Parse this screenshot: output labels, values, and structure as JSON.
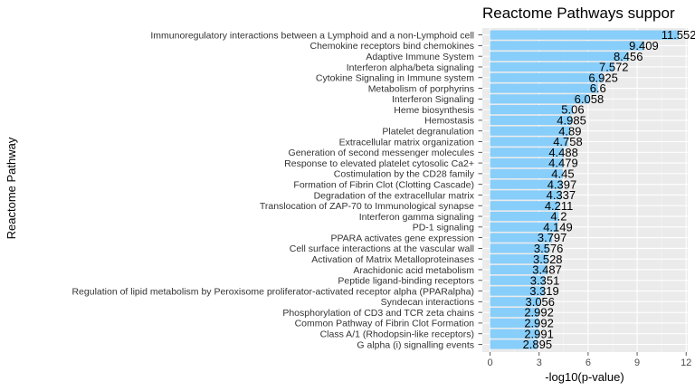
{
  "chart_data": {
    "type": "bar",
    "orientation": "horizontal",
    "title": "Reactome Pathways suppor",
    "xlabel": "-log10(p-value)",
    "ylabel": "Reactome Pathway",
    "xlim": [
      0,
      12
    ],
    "xticks": [
      0,
      3,
      6,
      9,
      12
    ],
    "grid": true,
    "bar_color": "#87CEFA",
    "panel_color": "#EBEBEB",
    "categories": [
      "Immunoregulatory interactions between a Lymphoid and a non-Lymphoid cell",
      "Chemokine receptors bind chemokines",
      "Adaptive Immune System",
      "Interferon alpha/beta signaling",
      "Cytokine Signaling in Immune system",
      "Metabolism of porphyrins",
      "Interferon Signaling",
      "Heme biosynthesis",
      "Hemostasis",
      "Platelet degranulation",
      "Extracellular matrix organization",
      "Generation of second messenger molecules",
      "Response to elevated platelet cytosolic Ca2+",
      "Costimulation by the CD28 family",
      "Formation of Fibrin Clot (Clotting Cascade)",
      "Degradation of the extracellular matrix",
      "Translocation of ZAP-70 to Immunological synapse",
      "Interferon gamma signaling",
      "PD-1 signaling",
      "PPARA activates gene expression",
      "Cell surface interactions at the vascular wall",
      "Activation of Matrix Metalloproteinases",
      "Arachidonic acid metabolism",
      "Peptide ligand-binding receptors",
      "Regulation of lipid metabolism by Peroxisome proliferator-activated receptor alpha (PPARalpha)",
      "Syndecan interactions",
      "Phosphorylation of CD3 and TCR zeta chains",
      "Common Pathway of Fibrin Clot Formation",
      "Class A/1 (Rhodopsin-like receptors)",
      "G alpha (i) signalling events"
    ],
    "values": [
      11.552,
      9.409,
      8.456,
      7.572,
      6.925,
      6.6,
      6.058,
      5.06,
      4.985,
      4.89,
      4.758,
      4.488,
      4.479,
      4.45,
      4.397,
      4.337,
      4.211,
      4.2,
      4.149,
      3.797,
      3.576,
      3.528,
      3.487,
      3.351,
      3.319,
      3.056,
      2.992,
      2.992,
      2.991,
      2.895
    ],
    "value_labels": [
      "11.552",
      "9.409",
      "8.456",
      "7.572",
      "6.925",
      "6.6",
      "6.058",
      "5.06",
      "4.985",
      "4.89",
      "4.758",
      "4.488",
      "4.479",
      "4.45",
      "4.397",
      "4.337",
      "4.211",
      "4.2",
      "4.149",
      "3.797",
      "3.576",
      "3.528",
      "3.487",
      "3.351",
      "3.319",
      "3.056",
      "2.992",
      "2.992",
      "2.991",
      "2.895"
    ]
  }
}
